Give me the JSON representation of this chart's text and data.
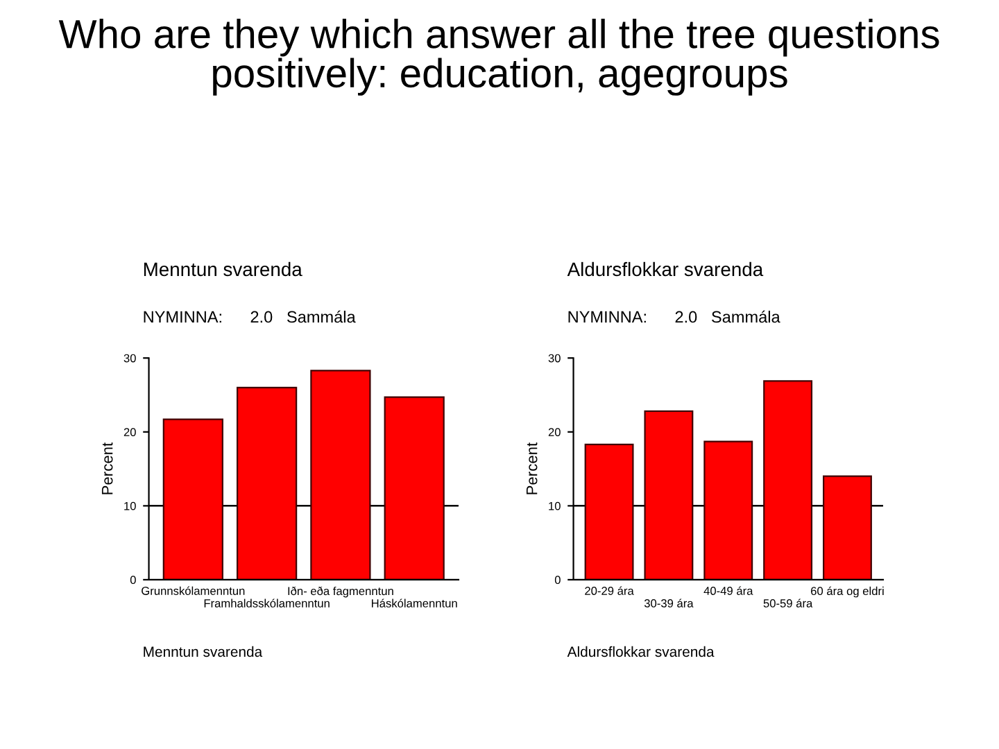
{
  "chart_data": [
    {
      "type": "bar",
      "title": "Menntun svarenda",
      "subtitle": "NYMINNA:      2.0   Sammála",
      "xlabel": "Menntun svarenda",
      "ylabel": "Percent",
      "annotations": [
        "Who are they which answer all the tree questions positively: education, agegroups"
      ],
      "categories": [
        "Grunnskólamenntun",
        "Framhaldsskólamenntun",
        "Iðn- eða fagmenntun",
        "Háskólamenntun"
      ],
      "values": [
        21.7,
        26.0,
        28.3,
        24.7
      ],
      "color": "#ff0000",
      "ylim": [
        0,
        30
      ],
      "yticks": [
        0,
        10,
        20,
        30
      ],
      "ref_lines": [
        {
          "axis": "y",
          "value": 10
        }
      ]
    },
    {
      "type": "bar",
      "title": "Aldursflokkar svarenda",
      "subtitle": "NYMINNA:      2.0   Sammála",
      "xlabel": "Aldursflokkar svarenda",
      "ylabel": "Percent",
      "categories": [
        "20-29 ára",
        "30-39 ára",
        "40-49 ára",
        "50-59 ára",
        "60 ára og eldri"
      ],
      "values": [
        18.3,
        22.8,
        18.7,
        26.9,
        14.0
      ],
      "color": "#ff0000",
      "ylim": [
        0,
        30
      ],
      "yticks": [
        0,
        10,
        20,
        30
      ],
      "ref_lines": [
        {
          "axis": "y",
          "value": 10
        }
      ]
    }
  ]
}
